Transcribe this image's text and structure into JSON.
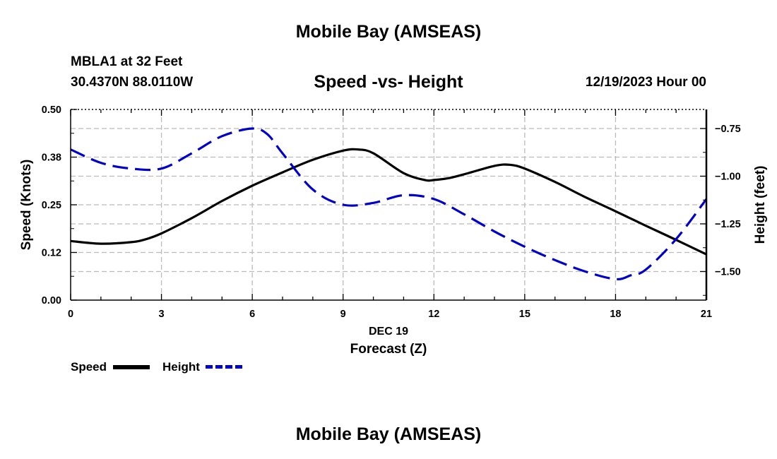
{
  "page": {
    "title_top": "Mobile Bay (AMSEAS)",
    "title_bottom": "Mobile Bay (AMSEAS)",
    "station": "MBLA1 at 32 Feet",
    "coords": "30.4370N  88.0110W",
    "plot_title": "Speed -vs- Height",
    "datetime": "12/19/2023 Hour 00"
  },
  "chart_data": {
    "type": "line",
    "title": "Speed -vs- Height",
    "xlabel": "Forecast (Z)",
    "xdate_label": "DEC 19",
    "ylabel": "Speed (Knots)",
    "y2label": "Height (feet)",
    "xlim": [
      0,
      21
    ],
    "ylim": [
      0,
      0.5
    ],
    "y2lim": [
      -1.65,
      -0.65
    ],
    "x_ticks": [
      0,
      3,
      6,
      9,
      12,
      15,
      18,
      21
    ],
    "x_tick_labels": [
      "0",
      "3",
      "6",
      "9",
      "12",
      "15",
      "18",
      "21"
    ],
    "y_ticks": [
      0,
      0.125,
      0.25,
      0.375,
      0.5
    ],
    "y_tick_labels": [
      "0.00",
      "0.12",
      "0.25",
      "0.38",
      "0.50"
    ],
    "y2_ticks": [
      -0.75,
      -1.0,
      -1.25,
      -1.5
    ],
    "y2_tick_labels": [
      "−0.75",
      "−1.00",
      "−1.25",
      "−1.50"
    ],
    "grid": true,
    "series": [
      {
        "name": "Speed",
        "axis": "left",
        "color": "#000000",
        "style": "solid",
        "x": [
          0,
          1,
          2,
          2.5,
          3,
          4,
          5,
          6,
          7,
          8,
          9,
          9.5,
          10,
          11,
          11.7,
          12,
          12.5,
          13,
          14,
          14.5,
          15,
          16,
          17,
          18,
          19,
          20,
          21
        ],
        "values": [
          0.155,
          0.148,
          0.152,
          0.16,
          0.175,
          0.215,
          0.26,
          0.3,
          0.335,
          0.368,
          0.392,
          0.395,
          0.385,
          0.333,
          0.315,
          0.315,
          0.32,
          0.33,
          0.352,
          0.355,
          0.345,
          0.31,
          0.27,
          0.233,
          0.195,
          0.158,
          0.12
        ]
      },
      {
        "name": "Height",
        "axis": "right",
        "color": "#0000cc",
        "style": "dashed",
        "x": [
          0,
          1,
          2,
          3,
          4,
          5,
          6,
          6.5,
          7,
          8,
          9,
          10,
          11,
          12,
          13,
          14,
          15,
          16,
          17,
          18,
          18.5,
          19,
          20,
          21
        ],
        "values": [
          -0.86,
          -0.93,
          -0.96,
          -0.96,
          -0.88,
          -0.79,
          -0.75,
          -0.78,
          -0.88,
          -1.07,
          -1.15,
          -1.14,
          -1.1,
          -1.12,
          -1.2,
          -1.29,
          -1.37,
          -1.44,
          -1.5,
          -1.54,
          -1.52,
          -1.49,
          -1.33,
          -1.12
        ]
      }
    ],
    "legend": [
      {
        "label": "Speed",
        "color": "#000000",
        "style": "solid"
      },
      {
        "label": "Height",
        "color": "#0000cc",
        "style": "dashed"
      }
    ]
  }
}
